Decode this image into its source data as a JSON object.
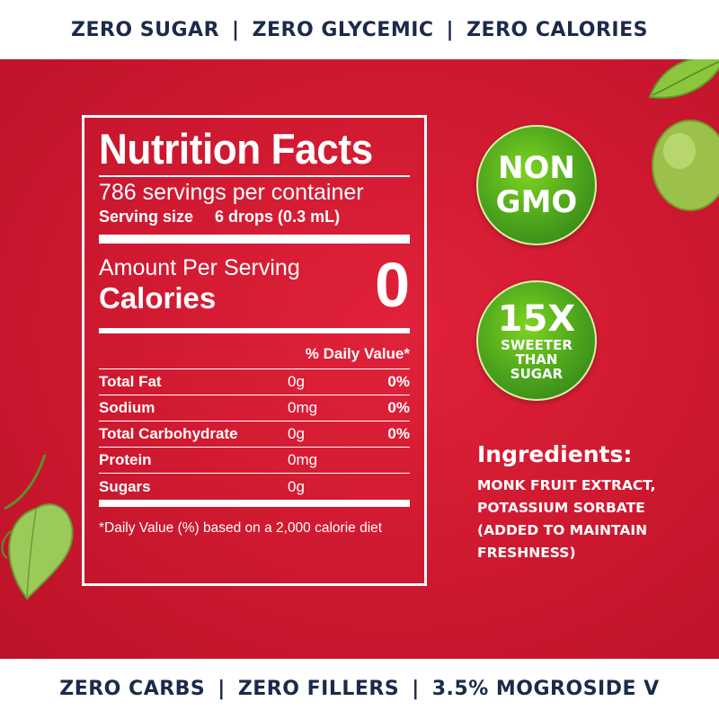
{
  "top_banner": {
    "items": [
      "ZERO SUGAR",
      "ZERO GLYCEMIC",
      "ZERO CALORIES"
    ]
  },
  "bottom_banner": {
    "items": [
      "ZERO CARBS",
      "ZERO FILLERS",
      "3.5% MOGROSIDE V"
    ]
  },
  "nutrition": {
    "title": "Nutrition Facts",
    "servings_per_container": "786 servings per container",
    "serving_size_label": "Serving size",
    "serving_size_value": "6 drops (0.3 mL)",
    "amount_per_serving": "Amount Per Serving",
    "calories_label": "Calories",
    "calories_value": "0",
    "daily_value_header": "% Daily Value*",
    "rows": [
      {
        "name": "Total Fat",
        "amount": "0g",
        "dv": "0%"
      },
      {
        "name": "Sodium",
        "amount": "0mg",
        "dv": "0%"
      },
      {
        "name": "Total Carbohydrate",
        "amount": "0g",
        "dv": "0%"
      },
      {
        "name": "Protein",
        "amount": "0mg",
        "dv": ""
      },
      {
        "name": "Sugars",
        "amount": "0g",
        "dv": ""
      }
    ],
    "footnote": "*Daily Value (%) based on a 2,000 calorie diet"
  },
  "badges": {
    "gmo": {
      "line1": "NON",
      "line2": "GMO"
    },
    "sweeter": {
      "big": "15X",
      "line1": "SWEETER",
      "line2": "THAN",
      "line3": "SUGAR"
    }
  },
  "ingredients": {
    "title": "Ingredients:",
    "lines": [
      "MONK FRUIT EXTRACT,",
      "POTASSIUM SORBATE",
      "(ADDED TO MAINTAIN",
      "FRESHNESS)"
    ]
  },
  "colors": {
    "banner_text": "#1c2a4a",
    "background_red": "#d11a31",
    "badge_green": "#4aa21c",
    "text_white": "#ffffff"
  },
  "decorations": [
    "leaf-icon",
    "monk-fruit-icon",
    "vine-leaf-icon"
  ]
}
